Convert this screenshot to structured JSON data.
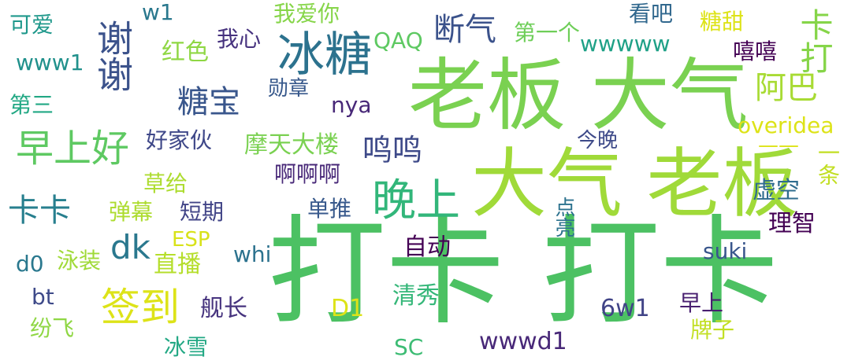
{
  "cloud": {
    "words": [
      {
        "text": "打卡 打卡",
        "color": "#4cc163"
      },
      {
        "text": "老板 大气",
        "color": "#7ad151"
      },
      {
        "text": "大气 老板",
        "color": "#a0da39"
      },
      {
        "text": "冰糖",
        "color": "#2c728e"
      },
      {
        "text": "早上好",
        "color": "#5ec962"
      },
      {
        "text": "晚上",
        "color": "#32b67a"
      },
      {
        "text": "签到",
        "color": "#dde318"
      },
      {
        "text": "谢谢",
        "color": "#3b528b"
      },
      {
        "text": "卡打",
        "color": "#86d549"
      },
      {
        "text": "糖宝",
        "color": "#39568c"
      },
      {
        "text": "断气",
        "color": "#3b528b"
      },
      {
        "text": "阿巴",
        "color": "#a8db34"
      },
      {
        "text": "卡卡",
        "color": "#277f8e"
      },
      {
        "text": "dk",
        "color": "#2a788e"
      },
      {
        "text": "鸣鸣",
        "color": "#3e4a89"
      },
      {
        "text": "虚空",
        "color": "#2f6c8e"
      },
      {
        "text": "理智",
        "color": "#440154"
      },
      {
        "text": "摩天大楼",
        "color": "#7ad151"
      },
      {
        "text": "啊啊啊",
        "color": "#482878"
      },
      {
        "text": "单推",
        "color": "#38598c"
      },
      {
        "text": "短期",
        "color": "#414487"
      },
      {
        "text": "弹幕",
        "color": "#addc30"
      },
      {
        "text": "草给",
        "color": "#addc30"
      },
      {
        "text": "好家伙",
        "color": "#3f4889"
      },
      {
        "text": "自动",
        "color": "#440154"
      },
      {
        "text": "直播",
        "color": "#b5de2b"
      },
      {
        "text": "ESP",
        "color": "#d8e219"
      },
      {
        "text": "泳装",
        "color": "#a0da39"
      },
      {
        "text": "whi",
        "color": "#2c728e"
      },
      {
        "text": "suki",
        "color": "#39568c"
      },
      {
        "text": "d0",
        "color": "#2a788e"
      },
      {
        "text": "bt",
        "color": "#3e4a89"
      },
      {
        "text": "清秀",
        "color": "#35b779"
      },
      {
        "text": "D1",
        "color": "#dde318"
      },
      {
        "text": "6w1",
        "color": "#414487"
      },
      {
        "text": "早上",
        "color": "#481f70"
      },
      {
        "text": "舰长",
        "color": "#46337e"
      },
      {
        "text": "纷飞",
        "color": "#8fd744"
      },
      {
        "text": "冰雪",
        "color": "#22a884"
      },
      {
        "text": "SC",
        "color": "#3dbc74"
      },
      {
        "text": "wwwd1",
        "color": "#482878"
      },
      {
        "text": "牌子",
        "color": "#c2df23"
      },
      {
        "text": "点亮",
        "color": "#2c728e"
      },
      {
        "text": "今晚",
        "color": "#3e4a89"
      },
      {
        "text": "overidea",
        "color": "#dde318"
      },
      {
        "text": "——",
        "color": "#dde318"
      },
      {
        "text": "一条",
        "color": "#c2df23"
      },
      {
        "text": "nya",
        "color": "#482878"
      },
      {
        "text": "勋章",
        "color": "#38598c"
      },
      {
        "text": "第三",
        "color": "#22a884"
      },
      {
        "text": "www1",
        "color": "#21918c"
      },
      {
        "text": "可爱",
        "color": "#1f988b"
      },
      {
        "text": "w1",
        "color": "#2a788e"
      },
      {
        "text": "我爱你",
        "color": "#86d549"
      },
      {
        "text": "我心",
        "color": "#46327e"
      },
      {
        "text": "红色",
        "color": "#8fd744"
      },
      {
        "text": "QAQ",
        "color": "#5ec962"
      },
      {
        "text": "第一个",
        "color": "#6ece58"
      },
      {
        "text": "wwwww",
        "color": "#1fa187"
      },
      {
        "text": "看吧",
        "color": "#31688e"
      },
      {
        "text": "糖甜",
        "color": "#dde318"
      },
      {
        "text": "嘻嘻",
        "color": "#440154"
      }
    ]
  }
}
